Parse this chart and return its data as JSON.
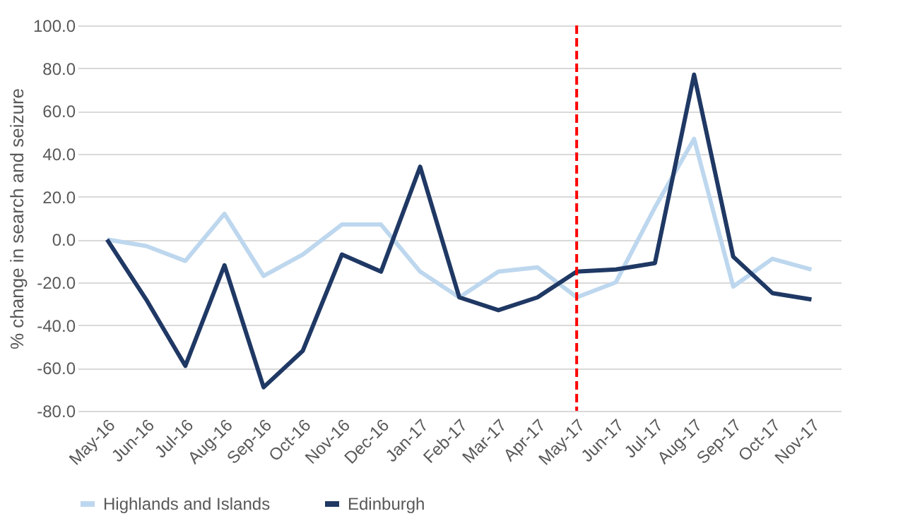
{
  "chart_data": {
    "type": "line",
    "ylabel": "% change in search and seizure",
    "categories": [
      "May-16",
      "Jun-16",
      "Jul-16",
      "Aug-16",
      "Sep-16",
      "Oct-16",
      "Nov-16",
      "Dec-16",
      "Jan-17",
      "Feb-17",
      "Mar-17",
      "Apr-17",
      "May-17",
      "Jun-17",
      "Jul-17",
      "Aug-17",
      "Sep-17",
      "Oct-17",
      "Nov-17"
    ],
    "series": [
      {
        "name": "Highlands and Islands",
        "color": "#bdd7ee",
        "values": [
          0,
          -3,
          -10,
          12,
          -17,
          -7,
          7,
          7,
          -15,
          -27,
          -15,
          -13,
          -27,
          -20,
          15,
          47,
          -22,
          -9,
          -14
        ]
      },
      {
        "name": "Edinburgh",
        "color": "#1f3864",
        "values": [
          0,
          -28,
          -59,
          -12,
          -69,
          -52,
          -7,
          -15,
          34,
          -27,
          -33,
          -27,
          -15,
          -14,
          -11,
          77,
          -8,
          -25,
          -28
        ]
      }
    ],
    "ylim": [
      -80,
      100
    ],
    "yticks": [
      {
        "value": -80,
        "label": "-80.0"
      },
      {
        "value": -60,
        "label": "-60.0"
      },
      {
        "value": -40,
        "label": "-40.0"
      },
      {
        "value": -20,
        "label": "-20.0"
      },
      {
        "value": 0,
        "label": "0.0"
      },
      {
        "value": 20,
        "label": "20.0"
      },
      {
        "value": 40,
        "label": "40.0"
      },
      {
        "value": 60,
        "label": "60.0"
      },
      {
        "value": 80,
        "label": "80.0"
      },
      {
        "value": 100,
        "label": "100.0"
      }
    ],
    "ref_lines": [
      {
        "axis": "x",
        "value": "May-17",
        "color": "#ff0000",
        "line_style": "dashed"
      }
    ],
    "grid": "y",
    "legend": "bottom",
    "marker": "none",
    "line_style": "solid"
  }
}
